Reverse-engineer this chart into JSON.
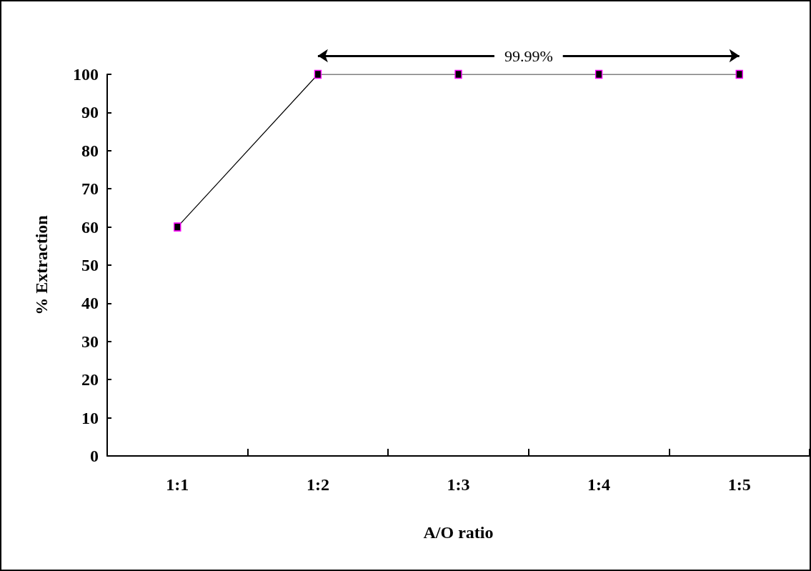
{
  "chart_data": {
    "type": "line",
    "xlabel": "A/O ratio",
    "ylabel": "% Extraction",
    "categories": [
      "1:1",
      "1:2",
      "1:3",
      "1:4",
      "1:5"
    ],
    "series": [
      {
        "color": "#000000",
        "values": [
          60,
          100,
          100,
          100,
          100
        ]
      }
    ],
    "ylim": [
      0,
      100
    ],
    "yticks": [
      0,
      10,
      20,
      30,
      40,
      50,
      60,
      70,
      80,
      90,
      100
    ],
    "grid": false,
    "marker": "square",
    "line_style": "solid",
    "annotations": [
      "99.99%"
    ]
  }
}
